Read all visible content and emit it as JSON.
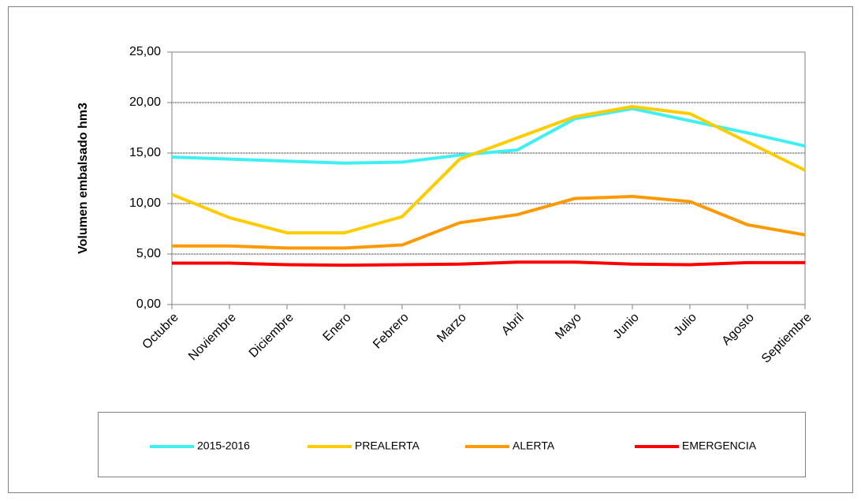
{
  "chart_data": {
    "type": "line",
    "y_label": "Volumen embalsado hm3",
    "categories": [
      "Octubre",
      "Noviembre",
      "Diciembre",
      "Enero",
      "Febrero",
      "Marzo",
      "Abril",
      "Mayo",
      "Junio",
      "Julio",
      "Agosto",
      "Septiembre"
    ],
    "series": [
      {
        "name": "2015-2016",
        "color": "#3ff0f2",
        "values": [
          14.6,
          14.4,
          14.2,
          14.0,
          14.1,
          14.8,
          15.3,
          18.4,
          19.4,
          18.2,
          17.0,
          15.7
        ]
      },
      {
        "name": "PREALERTA",
        "color": "#ffcc00",
        "values": [
          10.9,
          8.6,
          7.1,
          7.1,
          8.7,
          14.4,
          16.5,
          18.6,
          19.6,
          18.9,
          16.1,
          13.3
        ]
      },
      {
        "name": "ALERTA",
        "color": "#ff9900",
        "values": [
          5.8,
          5.8,
          5.6,
          5.6,
          5.9,
          8.1,
          8.9,
          10.5,
          10.7,
          10.2,
          7.9,
          6.9
        ]
      },
      {
        "name": "EMERGENCIA",
        "color": "#ff0000",
        "values": [
          4.1,
          4.1,
          3.95,
          3.9,
          3.95,
          4.0,
          4.2,
          4.2,
          4.0,
          3.95,
          4.15,
          4.15
        ]
      }
    ],
    "ylim": [
      0,
      25
    ],
    "yticks": [
      {
        "value": 0,
        "label": "0,00"
      },
      {
        "value": 5,
        "label": "5,00"
      },
      {
        "value": 10,
        "label": "10,00"
      },
      {
        "value": 15,
        "label": "15,00"
      },
      {
        "value": 20,
        "label": "20,00"
      },
      {
        "value": 25,
        "label": "25,00"
      }
    ],
    "grid": true
  }
}
